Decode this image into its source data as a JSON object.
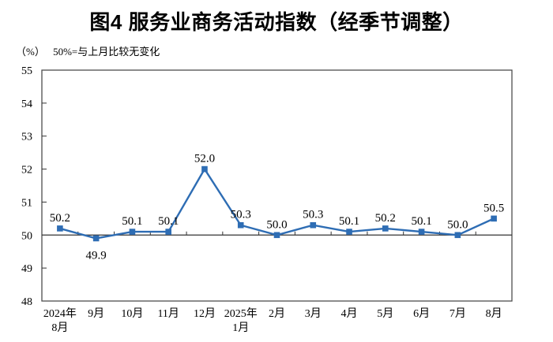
{
  "chart": {
    "title": "图4 服务业商务活动指数（经季节调整）",
    "unit_label": "（%）",
    "note": "50%=与上月比较无变化"
  },
  "chart_data": {
    "type": "line",
    "title": "图4 服务业商务活动指数（经季节调整）",
    "subtitle_note": "50%=与上月比较无变化",
    "ylabel": "（%）",
    "xlabel": "",
    "categories": [
      "2024年\n8月",
      "9月",
      "10月",
      "11月",
      "12月",
      "2025年\n1月",
      "2月",
      "3月",
      "4月",
      "5月",
      "6月",
      "7月",
      "8月"
    ],
    "values": [
      50.2,
      49.9,
      50.1,
      50.1,
      52.0,
      50.3,
      50.0,
      50.3,
      50.1,
      50.2,
      50.1,
      50.0,
      50.5
    ],
    "data_labels": [
      "50.2",
      "49.9",
      "50.1",
      "50.1",
      "52.0",
      "50.3",
      "50.0",
      "50.3",
      "50.1",
      "50.2",
      "50.1",
      "50.0",
      "50.5"
    ],
    "label_below": [
      1
    ],
    "ylim": [
      48,
      55
    ],
    "ytick_interval": 1,
    "baseline": 50,
    "grid": false,
    "legend": "none",
    "line_color": "#2E6DB4",
    "marker": "square",
    "axis_color": "#333333",
    "border_color": "#4d4d4d"
  }
}
